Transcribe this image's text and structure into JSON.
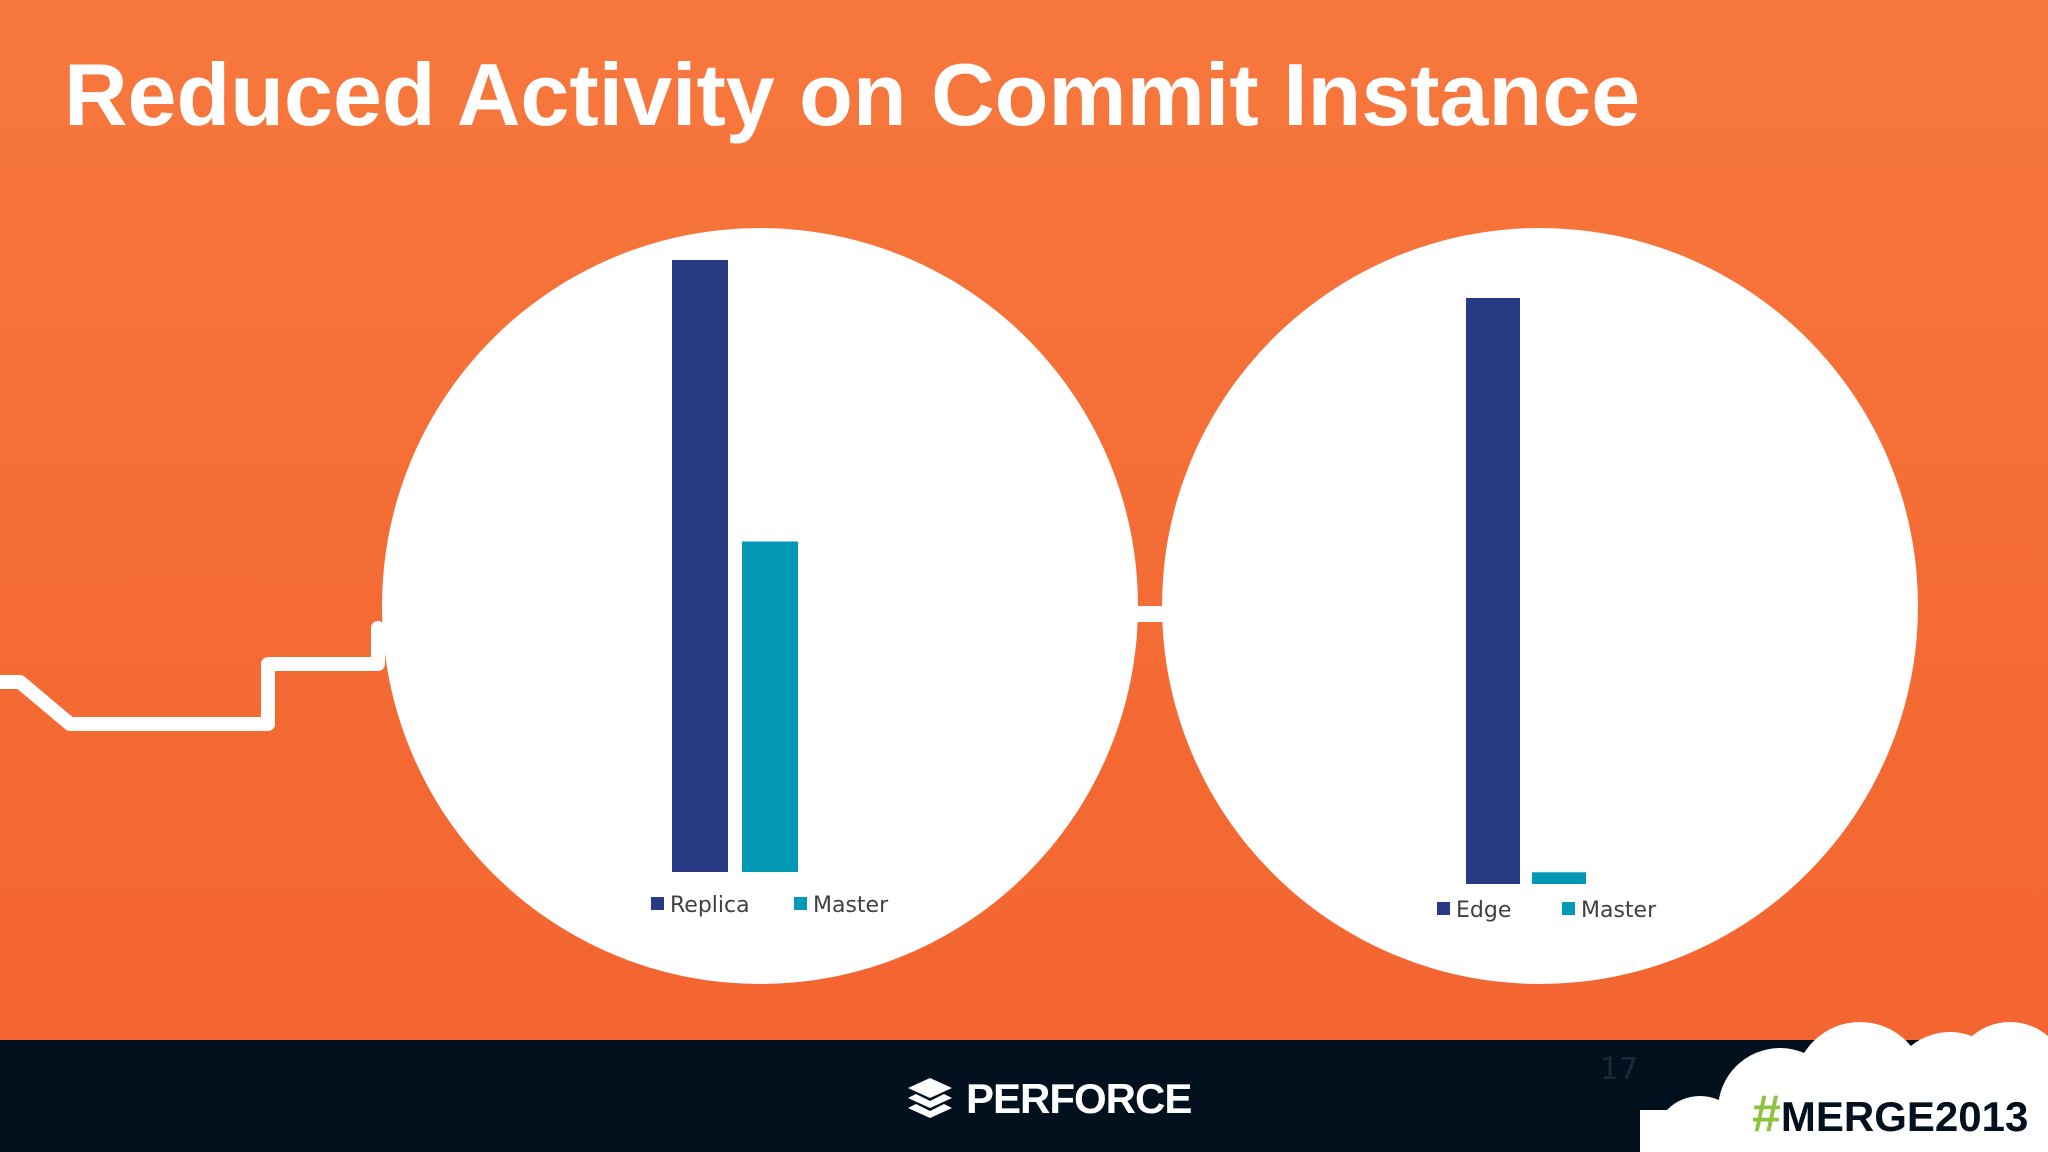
{
  "slide": {
    "title": "Reduced Activity on Commit Instance",
    "page_number": "17",
    "brand": "PERFORCE",
    "hashtag_symbol": "#",
    "hashtag_text": "MERGE2013"
  },
  "colors": {
    "background": "#f46a33",
    "footer": "#03111f",
    "series_primary": "#273a83",
    "series_secondary": "#0398b3",
    "hashtag_green": "#8cc43f"
  },
  "icons": [
    "perforce-logo-icon",
    "cloud-shape"
  ],
  "chart_data": [
    {
      "type": "bar",
      "series": [
        {
          "name": "Replica",
          "values": [
            100
          ],
          "color": "#273a83"
        },
        {
          "name": "Master",
          "values": [
            54
          ],
          "color": "#0398b3"
        }
      ],
      "ylim": [
        0,
        100
      ],
      "grid": false,
      "legend": "bottom"
    },
    {
      "type": "bar",
      "series": [
        {
          "name": "Edge",
          "values": [
            100
          ],
          "color": "#273a83"
        },
        {
          "name": "Master",
          "values": [
            2
          ],
          "color": "#0398b3"
        }
      ],
      "ylim": [
        0,
        100
      ],
      "grid": false,
      "legend": "bottom"
    }
  ]
}
